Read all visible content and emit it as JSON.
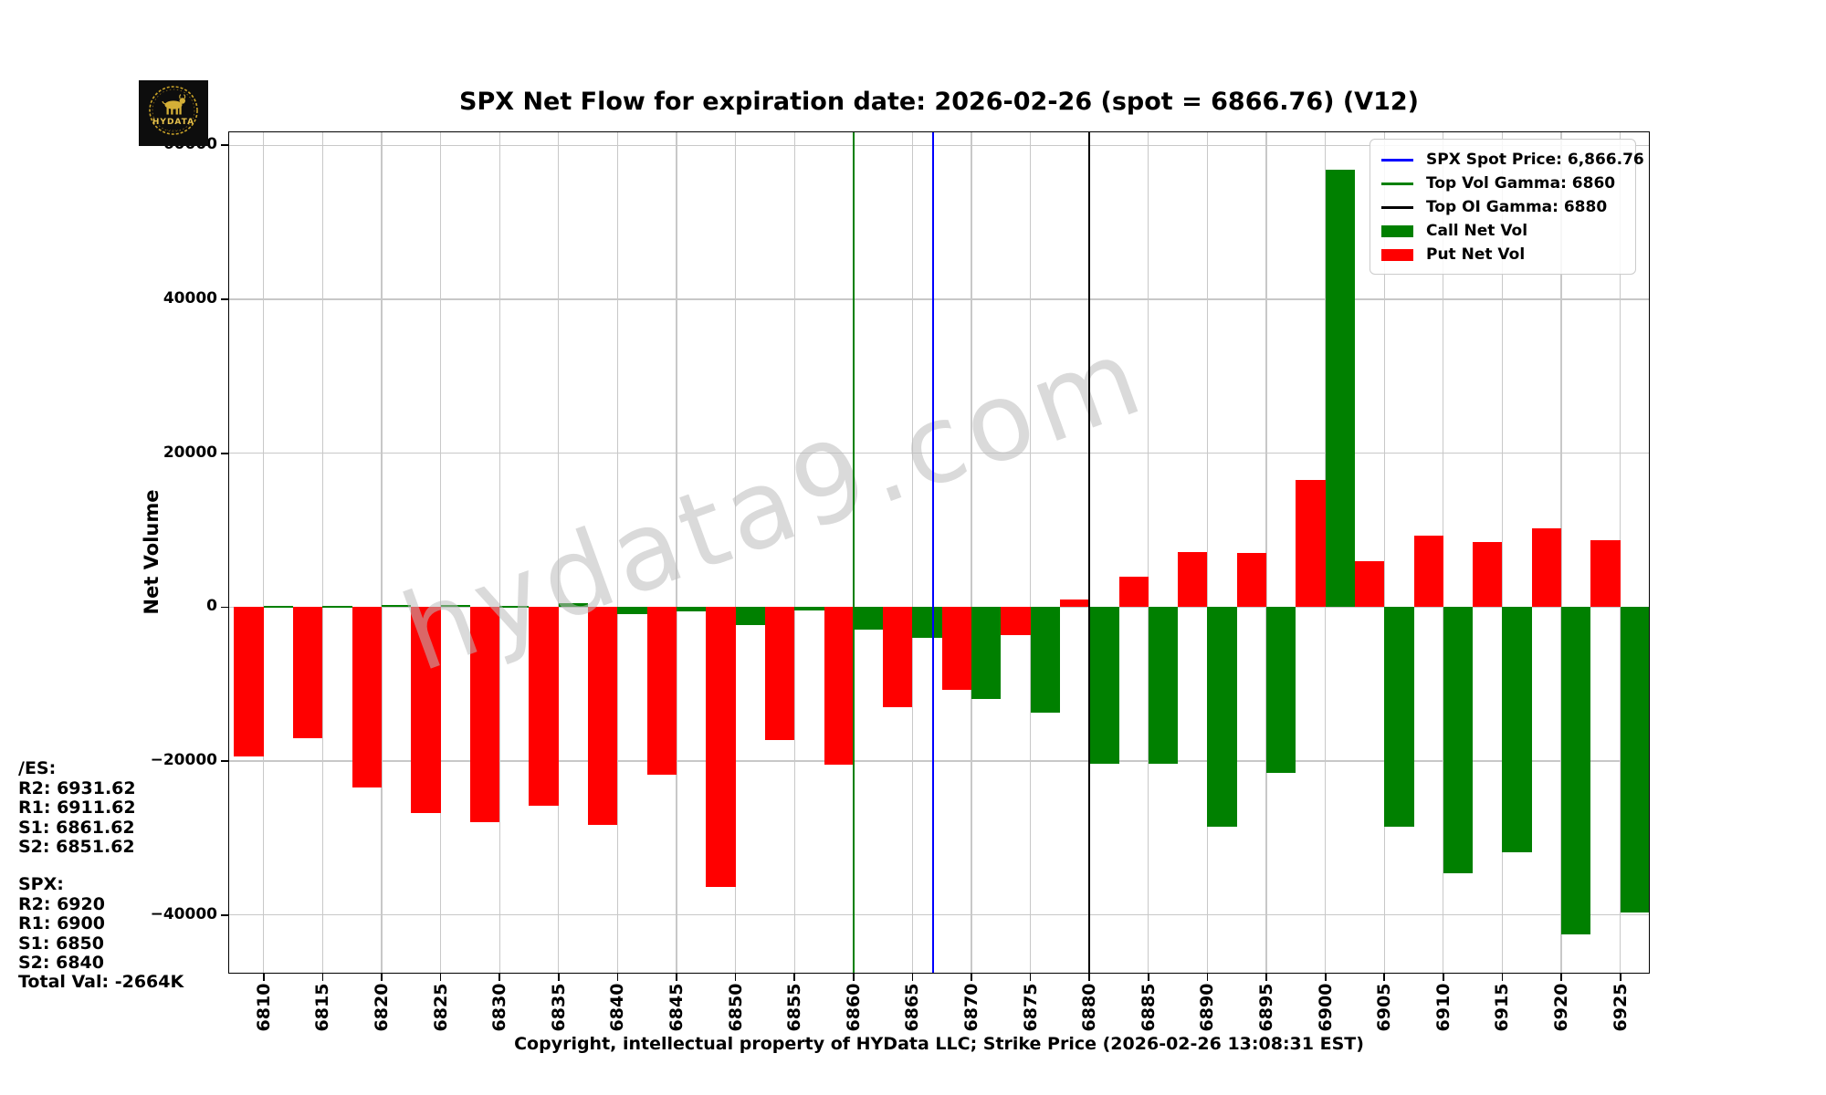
{
  "header": {
    "title": "SPX Net Flow for expiration date: 2026-02-26 (spot = 6866.76) (V12)"
  },
  "logo": {
    "brand": "HYDATA"
  },
  "watermark": {
    "text": "hydata9.com"
  },
  "y_axis": {
    "label": "Net Volume"
  },
  "footer": {
    "text": "Copyright, intellectual property of HYData LLC; Strike Price (2026-02-26 13:08:31 EST)"
  },
  "side_annotations": {
    "es": "/ES:\nR2: 6931.62\nR1: 6911.62\nS1: 6861.62\nS2: 6851.62",
    "spx": "SPX:\nR2: 6920\nR1: 6900\nS1: 6850\nS2: 6840",
    "total": "Total Val: -2664K"
  },
  "legend": {
    "entries": [
      {
        "swatch": "line",
        "color": "#0000ff",
        "label": "SPX Spot Price: 6,866.76"
      },
      {
        "swatch": "line",
        "color": "#008000",
        "label": "Top Vol Gamma: 6860"
      },
      {
        "swatch": "line",
        "color": "#000000",
        "label": "Top OI Gamma: 6880"
      },
      {
        "swatch": "patch",
        "color": "#008000",
        "label": "Call Net Vol"
      },
      {
        "swatch": "patch",
        "color": "#ff0000",
        "label": "Put Net Vol"
      }
    ]
  },
  "colors": {
    "call": "#008000",
    "put": "#ff0000",
    "spot_line": "#0000ff",
    "top_vol_gamma_line": "#008000",
    "top_oi_gamma_line": "#000000",
    "grid": "#c8c8c8",
    "watermark": "#bcbcbc"
  },
  "chart_data": {
    "type": "bar",
    "title": "SPX Net Flow for expiration date: 2026-02-26 (spot = 6866.76) (V12)",
    "xlabel": "",
    "ylabel": "Net Volume",
    "categories": [
      6810,
      6815,
      6820,
      6825,
      6830,
      6835,
      6840,
      6845,
      6850,
      6855,
      6860,
      6865,
      6870,
      6875,
      6880,
      6885,
      6890,
      6895,
      6900,
      6905,
      6910,
      6915,
      6920,
      6925
    ],
    "series": [
      {
        "name": "Call Net Vol",
        "color": "#008000",
        "position": "right",
        "values": [
          150,
          150,
          250,
          300,
          150,
          500,
          -900,
          -600,
          -2300,
          -400,
          -2900,
          -4000,
          -11900,
          -13700,
          -20300,
          -20400,
          -28500,
          -21500,
          56800,
          -28500,
          -34600,
          -31800,
          -42500,
          -39700
        ]
      },
      {
        "name": "Put Net Vol",
        "color": "#ff0000",
        "position": "left",
        "values": [
          -19400,
          -17000,
          -23400,
          -26700,
          -27900,
          -25800,
          -28300,
          -21800,
          -36400,
          -17300,
          -20500,
          -13000,
          -10800,
          -3600,
          1000,
          3900,
          7200,
          7000,
          16500,
          6000,
          9300,
          8500,
          10200,
          8700
        ]
      }
    ],
    "bar_width": 2.5,
    "vlines": [
      {
        "label": "SPX Spot Price",
        "x": 6866.76,
        "color": "#0000ff"
      },
      {
        "label": "Top Vol Gamma",
        "x": 6860,
        "color": "#008000"
      },
      {
        "label": "Top OI Gamma",
        "x": 6880,
        "color": "#000000"
      }
    ],
    "yticks": {
      "values": [
        60000,
        40000,
        20000,
        0,
        -20000,
        -40000
      ],
      "labels": [
        "60000",
        "40000",
        "20000",
        "0",
        "−20000",
        "−40000"
      ]
    },
    "ylim": [
      -47620,
      61815
    ],
    "xlim": [
      6807,
      6927.5
    ],
    "grid": true,
    "legend_position": "upper right"
  }
}
